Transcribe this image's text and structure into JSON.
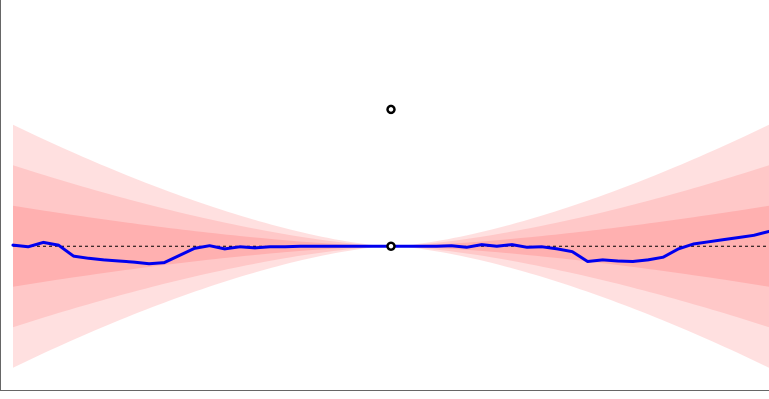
{
  "chart_data": {
    "type": "line",
    "title": "",
    "xlabel": "",
    "ylabel": "",
    "xlim": [
      -1,
      1
    ],
    "ylim": [
      -2.5,
      4.5
    ],
    "grid": false,
    "legend": "none",
    "baseline": {
      "y": 0,
      "style": "dashed",
      "color": "#000000"
    },
    "bands": [
      {
        "name": "band-3",
        "multiplier": 3,
        "color": "#ffe0e0"
      },
      {
        "name": "band-2",
        "multiplier": 2,
        "color": "#ffc8c8"
      },
      {
        "name": "band-1",
        "multiplier": 1,
        "color": "#ffb0b0"
      }
    ],
    "band_scale": 0.74,
    "series": [
      {
        "color": "#0000ee",
        "x": [
          -1.0,
          -0.96,
          -0.92,
          -0.88,
          -0.84,
          -0.8,
          -0.76,
          -0.72,
          -0.68,
          -0.64,
          -0.6,
          -0.56,
          -0.52,
          -0.48,
          -0.44,
          -0.4,
          -0.36,
          -0.32,
          -0.28,
          -0.24,
          -0.2,
          -0.16,
          -0.12,
          -0.08,
          -0.04,
          0.0,
          0.04,
          0.08,
          0.12,
          0.16,
          0.2,
          0.24,
          0.28,
          0.32,
          0.36,
          0.4,
          0.44,
          0.48,
          0.52,
          0.56,
          0.6,
          0.64,
          0.68,
          0.72,
          0.76,
          0.8,
          0.84,
          0.88,
          0.92,
          0.96,
          1.0
        ],
        "y": [
          0.02,
          -0.01,
          0.07,
          0.02,
          -0.18,
          -0.22,
          -0.25,
          -0.27,
          -0.29,
          -0.32,
          -0.3,
          -0.17,
          -0.04,
          0.01,
          -0.05,
          -0.01,
          -0.03,
          -0.01,
          -0.01,
          0.0,
          0.0,
          0.0,
          0.0,
          0.0,
          0.0,
          0.0,
          0.0,
          0.0,
          0.0,
          0.01,
          -0.02,
          0.03,
          0.0,
          0.03,
          -0.02,
          -0.01,
          -0.05,
          -0.1,
          -0.28,
          -0.25,
          -0.27,
          -0.28,
          -0.25,
          -0.2,
          -0.05,
          0.04,
          0.08,
          0.12,
          0.16,
          0.2,
          0.27
        ]
      }
    ],
    "points": [
      {
        "x": 0,
        "y": 0
      },
      {
        "x": 0,
        "y": 2.5
      }
    ]
  }
}
